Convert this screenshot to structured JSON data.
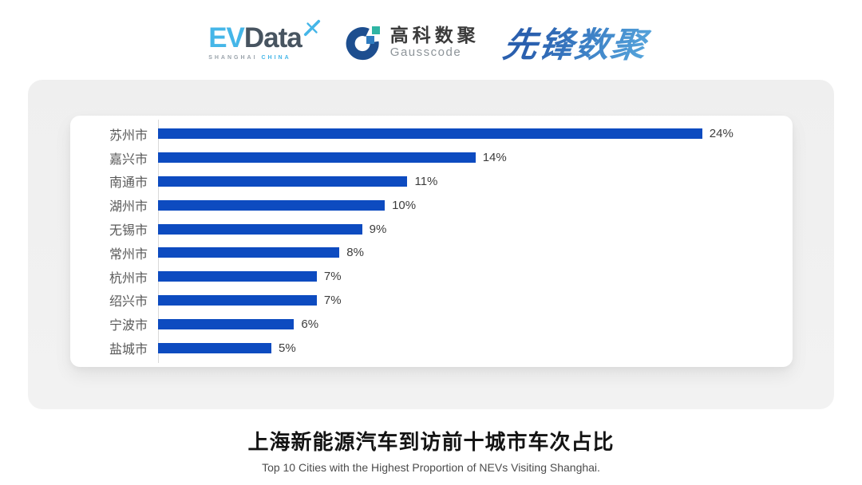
{
  "header": {
    "evdata": {
      "ev": "EV",
      "data": "Data",
      "sub_left": "SHANGHAI",
      "sub_right": "CHINA",
      "light_blue": "#45B6E8",
      "dark_gray": "#475460"
    },
    "gausscode": {
      "cn": "高科数聚",
      "en": "Gausscode",
      "navy": "#1D4E8F",
      "teal": "#2FB5A4",
      "blue": "#2E7BC0"
    },
    "xianfeng": {
      "text": "先锋数聚",
      "blue_dark": "#2A5FAE",
      "blue_light": "#56A5DC"
    }
  },
  "chart_data": {
    "type": "bar",
    "orientation": "horizontal",
    "categories": [
      "苏州市",
      "嘉兴市",
      "南通市",
      "湖州市",
      "无锡市",
      "常州市",
      "杭州市",
      "绍兴市",
      "宁波市",
      "盐城市"
    ],
    "values": [
      24,
      14,
      11,
      10,
      9,
      8,
      7,
      7,
      6,
      5
    ],
    "value_labels": [
      "24%",
      "14%",
      "11%",
      "10%",
      "9%",
      "8%",
      "7%",
      "7%",
      "6%",
      "5%"
    ],
    "unit": "%",
    "axis_max": 27,
    "bar_color": "#0D4BC0",
    "grid": false,
    "legend": false,
    "title": "上海新能源汽车到访前十城市车次占比",
    "subtitle": "Top 10 Cities with the Highest Proportion of NEVs Visiting Shanghai.",
    "xlabel": "",
    "ylabel": ""
  }
}
